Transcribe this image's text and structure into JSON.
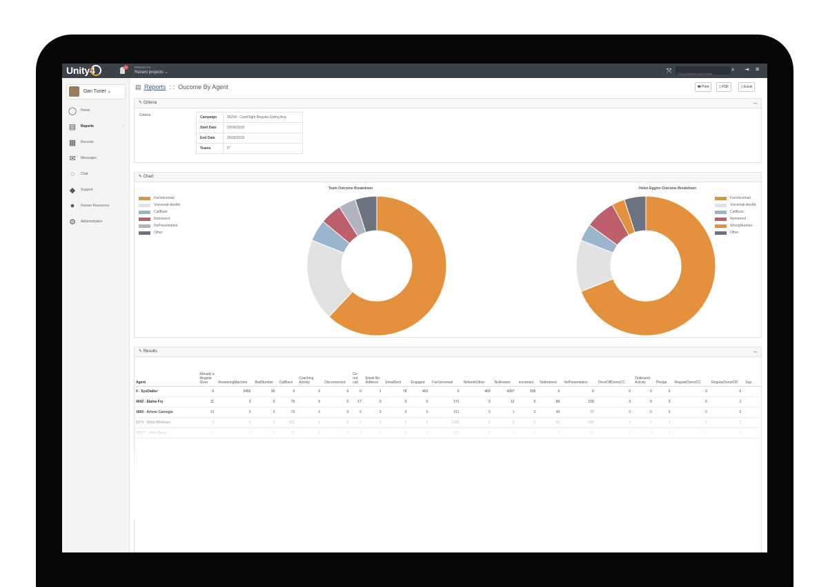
{
  "app": {
    "logo_text": "Unity4"
  },
  "topbar": {
    "notifications": "17",
    "projects_label": "PROJECTS",
    "projects_value": "Recent projects ⌄",
    "search_placeholder": "Find reports and more"
  },
  "sidebar": {
    "user": "Dan Tuner ⌄",
    "items": [
      {
        "label": "Home",
        "icon": "◯"
      },
      {
        "label": "Reports",
        "icon": "▤"
      },
      {
        "label": "Records",
        "icon": "▦"
      },
      {
        "label": "Messages",
        "icon": "✉"
      },
      {
        "label": "Chat",
        "icon": "◌"
      },
      {
        "label": "Support",
        "icon": "◆"
      },
      {
        "label": "Human Resources",
        "icon": "●"
      },
      {
        "label": "Administration",
        "icon": "⚙"
      }
    ]
  },
  "breadcrumb": {
    "icon": "▤",
    "link": "Reports",
    "separator": " : : ",
    "current": "Oucome By Agent"
  },
  "toolbar": {
    "print": "🖶 Print",
    "pdf": "▯ PDF",
    "excel": "▯ Excel"
  },
  "criteria": {
    "panel_title": "Criteria",
    "label": "Criteria",
    "rows": [
      {
        "key": "Campaign",
        "value": "35254 - CareFlight Regular Giving Acq"
      },
      {
        "key": "Start Date",
        "value": "20/06/2018"
      },
      {
        "key": "End Date",
        "value": "26/06/2018"
      },
      {
        "key": "Teams",
        "value": "IT"
      }
    ]
  },
  "chart_panel": {
    "panel_title": "Chart"
  },
  "chart_data": [
    {
      "type": "pie",
      "title": "Team Outcome Breakdown",
      "legend_position": "left",
      "categories": [
        "FaxVoicemail",
        "Voicemail-AnsMc",
        "CallBack",
        "NoInterest",
        "NoPresentation",
        "Other"
      ],
      "values": [
        62,
        19,
        5,
        5,
        4,
        5
      ],
      "colors": [
        "#e3913c",
        "#e2e2e2",
        "#9ab5cc",
        "#be5f6c",
        "#b0b4c1",
        "#6c7280"
      ]
    },
    {
      "type": "pie",
      "title": "Helen Eggins Outcome Breakdown",
      "legend_position": "right",
      "categories": [
        "FaxVoicemail",
        "Voicemail-AnsMc",
        "CallBack",
        "NoInterest",
        "WrongNumber",
        "Other"
      ],
      "values": [
        69,
        12,
        4,
        7,
        3,
        5
      ],
      "colors": [
        "#e3913c",
        "#e2e2e2",
        "#9ab5cc",
        "#be5f6c",
        "#e3913c",
        "#6c7280"
      ]
    }
  ],
  "results": {
    "panel_title": "Results",
    "columns": [
      "Agent",
      "Already a Regular Giver",
      "AnsweringMachine",
      "BadNumber",
      "CallBack",
      "Coaching Activity",
      "Disconnected",
      "Do not call",
      "Email No Address",
      "EmailSent",
      "Engaged",
      "FaxVoicemail",
      "NetworkOther",
      "NoAnswer",
      "nocontact",
      "NotInterest",
      "NoPresentation",
      "OnceOffDonorCC",
      "Outbound Activity",
      "Pledge",
      "RegularDonorCC",
      "RegularDonorDD",
      "Sup"
    ],
    "rows": [
      [
        "0 - SysDialler",
        "0",
        "2455",
        "30",
        "0",
        "0",
        "0",
        "0",
        "1",
        "78",
        "452",
        "0",
        "469",
        "4397",
        "595",
        "0",
        "0",
        "0",
        "0",
        "0",
        "0",
        "0",
        ""
      ],
      [
        "4042 - Elaine Fry",
        "11",
        "0",
        "0",
        "79",
        "0",
        "0",
        "17",
        "0",
        "0",
        "0",
        "171",
        "0",
        "12",
        "0",
        "89",
        "100",
        "3",
        "0",
        "0",
        "6",
        "1",
        ""
      ],
      [
        "4889 - Arlene Carnegie",
        "10",
        "0",
        "0",
        "79",
        "0",
        "0",
        "6",
        "0",
        "0",
        "5",
        "511",
        "0",
        "1",
        "0",
        "49",
        "77",
        "0",
        "0",
        "0",
        "0",
        "0",
        ""
      ],
      [
        "8374 - Nikki Whitman",
        "3",
        "0",
        "0",
        "122",
        "0",
        "0",
        "0",
        "0",
        "0",
        "0",
        "1295",
        "0",
        "0",
        "0",
        "60",
        "140",
        "3",
        "0",
        "1",
        "2",
        "1",
        ""
      ],
      [
        "20117 - John Berry",
        "1",
        "0",
        "0",
        "20",
        "0",
        "0",
        "3",
        "0",
        "0",
        "0",
        "239",
        "0",
        "1",
        "0",
        "7",
        "24",
        "1",
        "0",
        "0",
        "1",
        "0",
        ""
      ]
    ]
  }
}
